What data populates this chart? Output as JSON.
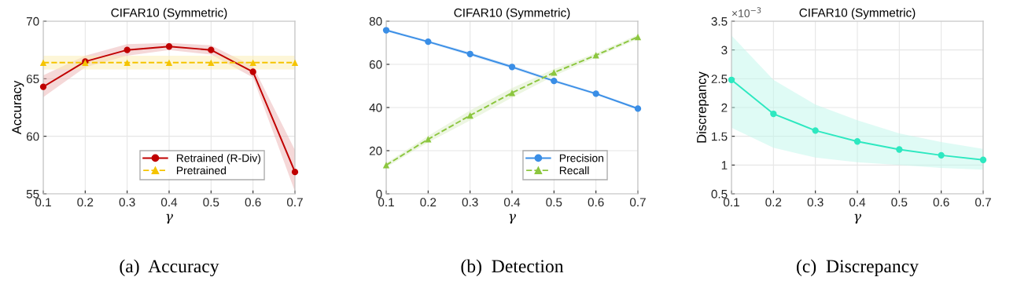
{
  "chart_data": [
    {
      "type": "line",
      "title": "CIFAR10 (Symmetric)",
      "xlabel": "γ",
      "ylabel": "Accuracy",
      "x": [
        0.1,
        0.2,
        0.3,
        0.4,
        0.5,
        0.6,
        0.7
      ],
      "xlim": [
        0.1,
        0.7
      ],
      "xticks": [
        0.1,
        0.2,
        0.3,
        0.4,
        0.5,
        0.6,
        0.7
      ],
      "ylim": [
        55,
        70
      ],
      "yticks": [
        55,
        60,
        65,
        70
      ],
      "grid": true,
      "legend": "bottom right",
      "series": [
        {
          "name": "Retrained (R-Div)",
          "color": "#c00000",
          "marker": "circle",
          "line_style": "solid",
          "values": [
            64.3,
            66.5,
            67.5,
            67.8,
            67.5,
            65.6,
            56.9
          ],
          "lower": [
            63.4,
            66.0,
            67.0,
            67.5,
            67.1,
            65.1,
            55.2
          ],
          "upper": [
            65.3,
            67.0,
            68.0,
            68.1,
            67.9,
            66.1,
            58.8
          ]
        },
        {
          "name": "Pretrained",
          "color": "#f5c400",
          "marker": "triangle",
          "line_style": "dashed",
          "values": [
            66.4,
            66.4,
            66.4,
            66.4,
            66.4,
            66.4,
            66.4
          ],
          "lower": [
            65.8,
            65.8,
            65.8,
            65.8,
            65.8,
            65.8,
            65.8
          ],
          "upper": [
            67.0,
            67.0,
            67.0,
            67.0,
            67.0,
            67.0,
            67.0
          ]
        }
      ],
      "annotations": [
        "(a)  Accuracy"
      ]
    },
    {
      "type": "line",
      "title": "CIFAR10 (Symmetric)",
      "xlabel": "γ",
      "x": [
        0.1,
        0.2,
        0.3,
        0.4,
        0.5,
        0.6,
        0.7
      ],
      "xlim": [
        0.1,
        0.7
      ],
      "xticks": [
        0.1,
        0.2,
        0.3,
        0.4,
        0.5,
        0.6,
        0.7
      ],
      "ylim": [
        0,
        80
      ],
      "yticks": [
        0,
        20,
        40,
        60,
        80
      ],
      "grid": true,
      "legend": "bottom right",
      "series": [
        {
          "name": "Precision",
          "color": "#3a8ee6",
          "marker": "circle",
          "line_style": "solid",
          "values": [
            75.8,
            70.5,
            64.8,
            58.8,
            52.3,
            46.4,
            39.5
          ],
          "lower": [
            75.2,
            69.9,
            64.0,
            58.0,
            51.6,
            45.8,
            38.9
          ],
          "upper": [
            76.4,
            71.1,
            65.6,
            59.6,
            53.0,
            47.0,
            40.1
          ]
        },
        {
          "name": "Recall",
          "color": "#8cc63f",
          "marker": "triangle",
          "line_style": "dashed",
          "values": [
            13.3,
            25.3,
            36.3,
            46.8,
            56.2,
            64.2,
            72.7
          ],
          "lower": [
            12.3,
            23.8,
            34.0,
            44.6,
            54.6,
            63.2,
            71.7
          ],
          "upper": [
            14.3,
            26.8,
            38.6,
            49.0,
            57.8,
            65.2,
            73.7
          ]
        }
      ],
      "annotations": [
        "(b)  Detection"
      ]
    },
    {
      "type": "line",
      "title": "CIFAR10 (Symmetric)",
      "xlabel": "γ",
      "ylabel": "Discrepancy",
      "x": [
        0.1,
        0.2,
        0.3,
        0.4,
        0.5,
        0.6,
        0.7
      ],
      "xlim": [
        0.1,
        0.7
      ],
      "xticks": [
        0.1,
        0.2,
        0.3,
        0.4,
        0.5,
        0.6,
        0.7
      ],
      "ylim": [
        0.5,
        3.5
      ],
      "yticks": [
        0.5,
        1,
        1.5,
        2,
        2.5,
        3,
        3.5
      ],
      "grid": true,
      "series": [
        {
          "color": "#2de8c0",
          "marker": "circle",
          "line_style": "solid",
          "values": [
            2.48,
            1.89,
            1.6,
            1.41,
            1.27,
            1.17,
            1.09
          ],
          "lower": [
            1.65,
            1.3,
            1.13,
            1.05,
            1.0,
            0.95,
            0.92
          ],
          "upper": [
            3.25,
            2.48,
            2.05,
            1.78,
            1.55,
            1.4,
            1.28
          ]
        }
      ],
      "annotations": [
        "×10$^{−3}$",
        "(c)  Discrepancy"
      ]
    }
  ]
}
